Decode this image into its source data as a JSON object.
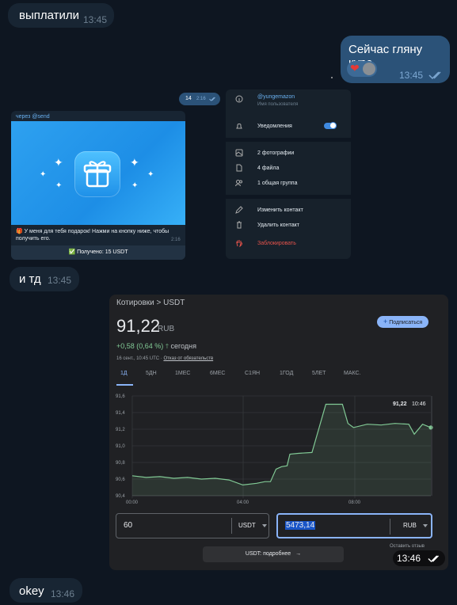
{
  "messages": {
    "m1": {
      "text": "выплатили",
      "time": "13:45"
    },
    "m2": {
      "text": "Сейчас гляну курс.",
      "time": "13:45"
    },
    "m3": {
      "text": "и тд",
      "time": "13:45"
    },
    "m4": {
      "text": "okey",
      "time": "13:46"
    }
  },
  "forward_badge": {
    "count": "14",
    "time": "2:16"
  },
  "gift": {
    "via": "через @send",
    "text": "🎁 У меня для тебя подарок! Нажми на кнопку ниже, чтобы получить его.",
    "time": "2:16",
    "button": "✅ Получено: 15 USDT"
  },
  "menu": {
    "username": "@yungemazon",
    "username_caption": "Имя пользователя",
    "notifications": "Уведомления",
    "photos": "2 фотографии",
    "files": "4 файла",
    "groups": "1 общая группа",
    "edit": "Изменить контакт",
    "delete": "Удалить контакт",
    "block": "Заблокировать"
  },
  "finance": {
    "breadcrumb": "Котировки > USDT",
    "price": "91,22",
    "currency": "RUB",
    "subscribe": "Подписаться",
    "change": "+0,58 (0,64 %)",
    "change_arrow": "🡑",
    "change_period": "сегодня",
    "date": "16 сент., 10:45 UTC ·",
    "disclaimer": "Отказ от обязательств",
    "tabs": [
      "1Д",
      "5ДН",
      "1МЕС",
      "6МЕС",
      "С1ЯН",
      "1ГОД",
      "5ЛЕТ",
      "МАКС."
    ],
    "active_tab": "1Д",
    "amount_from": "60",
    "unit_from": "USDT",
    "amount_to": "5473,14",
    "unit_to": "RUB",
    "feedback": "Оставить отзыв",
    "more_button": "USDT: подробнее",
    "stamp_time": "13:46",
    "chart_label_value": "91,22",
    "chart_label_time": "10:46"
  },
  "colors": {
    "background": "#0e1621",
    "bubble_in": "#182533",
    "bubble_out": "#2b5278",
    "card": "#202124",
    "line": "#81c995",
    "accent": "#8ab4f8"
  },
  "chart_data": {
    "type": "line",
    "title": "",
    "xlabel": "",
    "ylabel": "",
    "y_ticks": [
      "91,6",
      "91,4",
      "91,2",
      "91,0",
      "90,8",
      "90,6",
      "90,4"
    ],
    "x_ticks": [
      "00:00",
      "04:00",
      "08:00"
    ],
    "ylim": [
      90.4,
      91.6
    ],
    "x": [
      0,
      0.5,
      1,
      1.5,
      2,
      2.5,
      3,
      3.5,
      4,
      4.5,
      4.8,
      5,
      5.2,
      5.4,
      5.6,
      5.7,
      6,
      6.5,
      7,
      7.5,
      7.6,
      7.8,
      8,
      8.5,
      9,
      9.5,
      10,
      10.2,
      10.5,
      10.8
    ],
    "y": [
      90.64,
      90.62,
      90.63,
      90.61,
      90.62,
      90.6,
      90.61,
      90.59,
      90.53,
      90.55,
      90.57,
      90.57,
      90.72,
      90.75,
      90.76,
      90.9,
      90.91,
      90.92,
      91.5,
      91.5,
      91.5,
      91.27,
      91.22,
      91.26,
      91.25,
      91.27,
      91.26,
      91.14,
      91.26,
      91.22
    ],
    "grid": true,
    "legend": "none"
  }
}
